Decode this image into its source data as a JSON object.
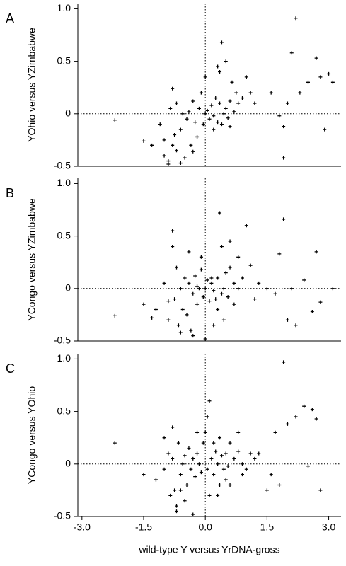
{
  "chart_data": [
    {
      "type": "scatter",
      "panel": "A",
      "ylabel": "YOhio versus YZimbabwe",
      "color": "#000000",
      "xlim": [
        -3.1,
        3.3
      ],
      "ylim": [
        -0.5,
        1.05
      ],
      "yticks": [
        -0.5,
        0,
        0.5,
        {
          "value": 1,
          "label": "1.0"
        }
      ],
      "reference_lines": {
        "x": 0,
        "y": 0
      },
      "x": [
        -2.2,
        -1.5,
        -1.3,
        -1.1,
        -1.0,
        -0.9,
        -0.85,
        -0.8,
        -0.75,
        -0.7,
        -0.7,
        -0.6,
        -0.55,
        -0.5,
        -0.45,
        -0.4,
        -0.35,
        -0.3,
        -0.25,
        -0.2,
        -0.15,
        -0.1,
        -0.05,
        0.0,
        0.05,
        0.1,
        0.15,
        0.2,
        0.25,
        0.3,
        0.35,
        0.4,
        0.45,
        0.5,
        0.55,
        0.6,
        0.65,
        0.7,
        0.75,
        0.8,
        0.9,
        1.0,
        1.1,
        1.2,
        0.4,
        0.3,
        0.2,
        0.6,
        -0.6,
        -0.8,
        -0.9,
        -1.0,
        0.0,
        0.5,
        1.8,
        1.9,
        2.0,
        2.2,
        2.3,
        2.5,
        2.7,
        2.8,
        3.0,
        3.1,
        2.9,
        2.1,
        1.6,
        1.9,
        -0.3,
        0.35
      ],
      "values": [
        -0.06,
        -0.26,
        -0.3,
        -0.1,
        -0.4,
        -0.48,
        0.05,
        0.24,
        -0.2,
        -0.35,
        0.1,
        -0.15,
        0.0,
        -0.42,
        -0.05,
        0.02,
        -0.3,
        0.12,
        -0.08,
        -0.22,
        0.05,
        0.2,
        -0.1,
        0.0,
        0.03,
        -0.05,
        0.08,
        -0.02,
        0.15,
        -0.08,
        0.1,
        -0.1,
        0.0,
        0.05,
        -0.04,
        0.12,
        0.3,
        0.02,
        0.2,
        0.1,
        0.15,
        0.35,
        0.2,
        0.1,
        0.68,
        0.45,
        -0.15,
        -0.12,
        -0.47,
        -0.3,
        -0.45,
        -0.25,
        0.35,
        0.5,
        -0.02,
        -0.42,
        0.1,
        0.91,
        0.2,
        0.3,
        0.53,
        0.35,
        0.38,
        0.3,
        -0.15,
        0.58,
        0.2,
        -0.12,
        -0.36,
        0.4
      ]
    },
    {
      "type": "scatter",
      "panel": "B",
      "ylabel": "YCongo versus YZimbabwe",
      "color": "#000000",
      "xlim": [
        -3.1,
        3.3
      ],
      "ylim": [
        -0.5,
        1.05
      ],
      "yticks": [
        -0.5,
        0,
        0.5,
        {
          "value": 1,
          "label": "1.0"
        }
      ],
      "reference_lines": {
        "x": 0,
        "y": 0
      },
      "x": [
        -2.2,
        -1.5,
        -1.2,
        -1.0,
        -0.9,
        -0.8,
        -0.75,
        -0.7,
        -0.65,
        -0.6,
        -0.55,
        -0.5,
        -0.45,
        -0.4,
        -0.35,
        -0.3,
        -0.25,
        -0.2,
        -0.15,
        -0.1,
        -0.05,
        0.0,
        0.05,
        0.1,
        0.15,
        0.2,
        0.25,
        0.3,
        0.35,
        0.4,
        0.45,
        0.5,
        0.55,
        0.6,
        0.7,
        0.8,
        0.9,
        1.0,
        1.1,
        1.3,
        0.4,
        0.2,
        -0.1,
        -0.6,
        -0.8,
        0.3,
        0.6,
        1.5,
        1.8,
        1.9,
        2.0,
        2.1,
        2.4,
        2.6,
        2.7,
        2.8,
        3.1,
        2.2,
        1.7,
        0.0,
        -0.9,
        -0.3,
        0.45,
        0.8,
        -0.2,
        1.2,
        -1.3,
        0.15,
        0.7,
        -0.4
      ],
      "values": [
        -0.26,
        -0.15,
        -0.2,
        0.05,
        -0.3,
        0.55,
        -0.1,
        0.2,
        -0.35,
        0.0,
        -0.2,
        0.1,
        -0.25,
        0.05,
        -0.4,
        -0.05,
        0.12,
        -0.15,
        0.0,
        0.18,
        -0.08,
        -0.48,
        0.08,
        -0.12,
        0.05,
        -0.02,
        -0.1,
        0.1,
        0.72,
        -0.05,
        0.0,
        0.15,
        -0.08,
        0.2,
        0.05,
        0.3,
        0.1,
        0.6,
        0.22,
        0.05,
        0.4,
        -0.35,
        0.3,
        -0.42,
        0.4,
        -0.2,
        0.45,
        0.0,
        0.33,
        0.66,
        -0.3,
        0.0,
        0.08,
        -0.22,
        0.35,
        -0.13,
        0.0,
        -0.35,
        -0.05,
        0.0,
        -0.12,
        -0.45,
        -0.3,
        0.0,
        0.02,
        -0.1,
        -0.28,
        0.1,
        -0.15,
        0.35
      ]
    },
    {
      "type": "scatter",
      "panel": "C",
      "ylabel": "YCongo versus YOhio",
      "xlabel": "wild-type Y versus YrDNA-gross",
      "color": "#000000",
      "xlim": [
        -3.1,
        3.3
      ],
      "ylim": [
        -0.5,
        1.05
      ],
      "xticks": [
        {
          "value": -3,
          "label": "-3.0"
        },
        -1.5,
        {
          "value": 0,
          "label": "0.0"
        },
        1.5,
        {
          "value": 3,
          "label": "3.0"
        }
      ],
      "yticks": [
        -0.5,
        0,
        0.5,
        {
          "value": 1,
          "label": "1.0"
        }
      ],
      "reference_lines": {
        "x": 0,
        "y": 0
      },
      "x": [
        -2.2,
        -1.5,
        -1.2,
        -1.0,
        -0.9,
        -0.85,
        -0.8,
        -0.7,
        -0.65,
        -0.6,
        -0.55,
        -0.5,
        -0.45,
        -0.4,
        -0.35,
        -0.3,
        -0.25,
        -0.2,
        -0.15,
        -0.1,
        -0.05,
        0.0,
        0.05,
        0.1,
        0.15,
        0.2,
        0.25,
        0.3,
        0.35,
        0.4,
        0.45,
        0.5,
        0.55,
        0.6,
        0.7,
        0.8,
        0.9,
        1.0,
        1.1,
        1.2,
        0.05,
        -0.7,
        -0.75,
        -0.5,
        0.3,
        0.5,
        1.5,
        1.6,
        1.7,
        1.9,
        2.0,
        2.2,
        2.4,
        2.6,
        2.7,
        2.8,
        1.8,
        0.8,
        -0.3,
        0.1,
        -1.0,
        -0.8,
        0.6,
        0.2,
        2.5,
        -0.2,
        1.3,
        0.9,
        -0.6,
        0.35
      ],
      "values": [
        0.2,
        -0.1,
        -0.15,
        -0.05,
        0.1,
        -0.3,
        0.05,
        -0.4,
        0.2,
        -0.1,
        0.0,
        0.08,
        -0.2,
        0.15,
        -0.05,
        0.05,
        -0.12,
        0.1,
        0.0,
        -0.08,
        0.2,
        0.3,
        -0.05,
        0.6,
        0.05,
        -0.1,
        0.12,
        0.0,
        -0.2,
        0.08,
        -0.05,
        0.1,
        -0.02,
        0.2,
        0.05,
        0.12,
        0.0,
        -0.05,
        0.1,
        0.05,
        0.45,
        -0.45,
        -0.25,
        -0.35,
        -0.3,
        -0.15,
        -0.25,
        -0.1,
        0.3,
        0.97,
        0.38,
        0.45,
        0.55,
        0.52,
        0.43,
        -0.25,
        -0.2,
        0.3,
        -0.48,
        -0.3,
        0.25,
        0.35,
        -0.2,
        0.2,
        -0.02,
        0.3,
        0.1,
        -0.1,
        -0.25,
        0.25
      ]
    }
  ]
}
